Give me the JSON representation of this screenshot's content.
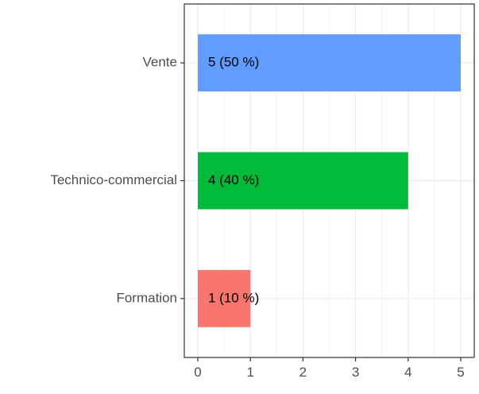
{
  "chart_data": {
    "type": "bar",
    "orientation": "horizontal",
    "categories": [
      "Vente",
      "Technico-commercial",
      "Formation"
    ],
    "values": [
      5,
      4,
      1
    ],
    "labels": [
      "5 (50 %)",
      "4 (40 %)",
      "1 (10 %)"
    ],
    "colors": [
      "#619CFF",
      "#00BA38",
      "#F8766D"
    ],
    "x_ticks": [
      "0",
      "1",
      "2",
      "3",
      "4",
      "5"
    ],
    "xlim": [
      0,
      5
    ],
    "title": "",
    "xlabel": "",
    "ylabel": "",
    "grid": true,
    "legend": "none"
  }
}
